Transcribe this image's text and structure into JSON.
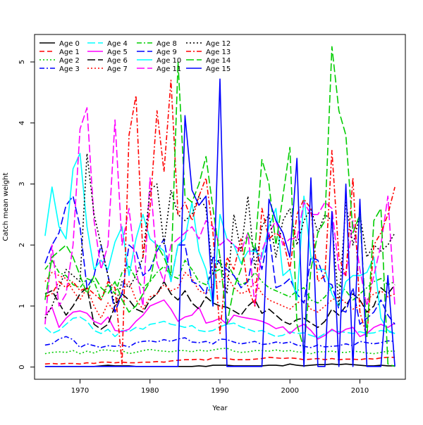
{
  "chart_data": {
    "type": "line",
    "xlabel": "Year",
    "ylabel": "Catch mean weight",
    "xlim": [
      1963.5,
      2016.5
    ],
    "ylim": [
      -0.2,
      5.45
    ],
    "x_ticks": [
      1970,
      1980,
      1990,
      2000,
      2010
    ],
    "y_ticks": [
      0,
      1,
      2,
      3,
      4,
      5
    ],
    "legend_position": "top-left",
    "x": [
      1965,
      1966,
      1967,
      1968,
      1969,
      1970,
      1971,
      1972,
      1973,
      1974,
      1975,
      1976,
      1977,
      1978,
      1979,
      1980,
      1981,
      1982,
      1983,
      1984,
      1985,
      1986,
      1987,
      1988,
      1989,
      1990,
      1991,
      1992,
      1993,
      1994,
      1995,
      1996,
      1997,
      1998,
      1999,
      2000,
      2001,
      2002,
      2003,
      2004,
      2005,
      2006,
      2007,
      2008,
      2009,
      2010,
      2011,
      2012,
      2013,
      2014,
      2015
    ],
    "series": [
      {
        "name": "Age 0",
        "color": "#000000",
        "dash": "solid",
        "values": [
          0.01,
          0.01,
          0.01,
          0.01,
          0.01,
          0.01,
          0.01,
          0.01,
          0.02,
          0.03,
          0.02,
          0.02,
          0.02,
          0.01,
          0.01,
          0.01,
          0.01,
          0.01,
          0.01,
          0.01,
          0.01,
          0.01,
          0.02,
          0.01,
          0.03,
          0.03,
          0.03,
          0.02,
          0.02,
          0.02,
          0.02,
          0.02,
          0.03,
          0.03,
          0.02,
          0.05,
          0.03,
          0.02,
          0.03,
          0.04,
          0.04,
          0.05,
          0.04,
          0.05,
          0.04,
          0.03,
          0.02,
          0.02,
          0.03,
          0.02,
          0.02
        ]
      },
      {
        "name": "Age 1",
        "color": "#ff0000",
        "dash": "dashed",
        "values": [
          0.05,
          0.06,
          0.05,
          0.06,
          0.06,
          0.05,
          0.07,
          0.06,
          0.08,
          0.08,
          0.07,
          0.08,
          0.07,
          0.07,
          0.08,
          0.08,
          0.09,
          0.08,
          0.1,
          0.11,
          0.12,
          0.12,
          0.13,
          0.11,
          0.15,
          0.15,
          0.14,
          0.12,
          0.12,
          0.12,
          0.13,
          0.14,
          0.16,
          0.15,
          0.14,
          0.15,
          0.14,
          0.12,
          0.13,
          0.14,
          0.12,
          0.14,
          0.12,
          0.13,
          0.13,
          0.12,
          0.14,
          0.13,
          0.15,
          0.16,
          0.16
        ]
      },
      {
        "name": "Age 2",
        "color": "#00cd00",
        "dash": "dotted",
        "values": [
          0.22,
          0.24,
          0.25,
          0.24,
          0.27,
          0.22,
          0.26,
          0.23,
          0.28,
          0.28,
          0.26,
          0.27,
          0.22,
          0.24,
          0.27,
          0.29,
          0.27,
          0.26,
          0.25,
          0.27,
          0.27,
          0.25,
          0.28,
          0.26,
          0.28,
          0.3,
          0.31,
          0.26,
          0.24,
          0.25,
          0.27,
          0.27,
          0.26,
          0.28,
          0.26,
          0.27,
          0.25,
          0.24,
          0.22,
          0.25,
          0.25,
          0.26,
          0.24,
          0.24,
          0.26,
          0.25,
          0.23,
          0.22,
          0.24,
          0.26,
          0.26
        ]
      },
      {
        "name": "Age 3",
        "color": "#0000ff",
        "dash": "dashdot",
        "values": [
          0.36,
          0.38,
          0.46,
          0.5,
          0.45,
          0.32,
          0.38,
          0.35,
          0.32,
          0.35,
          0.34,
          0.36,
          0.33,
          0.4,
          0.42,
          0.43,
          0.41,
          0.45,
          0.42,
          0.46,
          0.48,
          0.41,
          0.4,
          0.42,
          0.38,
          0.46,
          0.45,
          0.41,
          0.38,
          0.4,
          0.42,
          0.37,
          0.38,
          0.41,
          0.39,
          0.41,
          0.36,
          0.34,
          0.32,
          0.36,
          0.33,
          0.34,
          0.35,
          0.38,
          0.35,
          0.42,
          0.4,
          0.38,
          0.4,
          0.43,
          0.42
        ]
      },
      {
        "name": "Age 4",
        "color": "#00ffff",
        "dash": "longdash",
        "values": [
          0.65,
          0.55,
          0.6,
          0.7,
          0.8,
          0.82,
          0.75,
          0.6,
          0.55,
          0.62,
          0.5,
          0.6,
          0.58,
          0.65,
          0.62,
          0.7,
          0.72,
          0.75,
          0.7,
          0.68,
          0.65,
          0.68,
          0.6,
          0.58,
          0.6,
          0.66,
          0.7,
          0.72,
          0.66,
          0.62,
          0.58,
          0.6,
          0.55,
          0.5,
          0.52,
          0.58,
          0.55,
          0.56,
          0.52,
          0.48,
          0.55,
          0.6,
          0.58,
          0.57,
          0.55,
          0.58,
          0.55,
          0.56,
          0.6,
          0.58,
          0.55
        ]
      },
      {
        "name": "Age 5",
        "color": "#ff00ff",
        "dash": "solid",
        "values": [
          0.85,
          0.98,
          0.65,
          0.8,
          0.9,
          0.92,
          0.88,
          0.75,
          0.7,
          0.82,
          0.6,
          0.58,
          0.62,
          0.75,
          0.85,
          1.0,
          1.05,
          1.1,
          0.95,
          0.75,
          0.82,
          0.85,
          0.98,
          0.72,
          0.75,
          0.8,
          0.7,
          0.85,
          0.82,
          0.8,
          0.78,
          0.75,
          0.7,
          0.63,
          0.66,
          0.55,
          0.65,
          0.7,
          0.6,
          0.46,
          0.52,
          0.62,
          0.55,
          0.62,
          0.65,
          0.5,
          0.55,
          0.65,
          0.7,
          0.65,
          0.72
        ]
      },
      {
        "name": "Age 6",
        "color": "#000000",
        "dash": "longdash",
        "values": [
          1.2,
          1.25,
          1.05,
          0.85,
          1.0,
          1.2,
          1.3,
          0.7,
          0.62,
          0.7,
          1.0,
          1.2,
          1.1,
          0.95,
          0.9,
          1.1,
          1.2,
          1.4,
          1.2,
          1.1,
          1.25,
          1.05,
          0.95,
          1.15,
          1.05,
          1.0,
          0.98,
          0.92,
          0.85,
          1.0,
          1.1,
          0.88,
          0.95,
          0.85,
          0.75,
          0.7,
          0.78,
          0.8,
          0.72,
          0.65,
          0.75,
          0.95,
          0.85,
          1.0,
          1.2,
          1.1,
          0.9,
          1.0,
          1.3,
          1.2,
          1.35
        ]
      },
      {
        "name": "Age 7",
        "color": "#ff0000",
        "dash": "dotted",
        "values": [
          1.4,
          1.55,
          1.5,
          1.45,
          1.25,
          1.1,
          1.3,
          1.0,
          0.8,
          1.05,
          0.9,
          1.25,
          1.4,
          1.1,
          0.95,
          1.15,
          1.2,
          1.35,
          1.25,
          1.3,
          1.55,
          1.45,
          1.25,
          1.2,
          1.35,
          1.4,
          1.5,
          1.3,
          1.2,
          1.25,
          1.4,
          1.2,
          1.1,
          1.05,
          1.0,
          0.95,
          1.05,
          1.1,
          0.95,
          0.9,
          1.0,
          1.1,
          1.15,
          1.05,
          0.95,
          1.0,
          1.1,
          1.2,
          1.25,
          1.15,
          1.2
        ]
      },
      {
        "name": "Age 8",
        "color": "#00cd00",
        "dash": "dashdot",
        "values": [
          1.6,
          1.75,
          1.55,
          1.5,
          1.35,
          1.3,
          1.45,
          1.4,
          1.1,
          1.35,
          1.2,
          1.55,
          1.65,
          1.45,
          1.3,
          1.4,
          1.55,
          1.65,
          1.5,
          1.45,
          1.75,
          1.6,
          1.4,
          1.35,
          1.55,
          1.6,
          1.7,
          1.5,
          1.35,
          1.4,
          1.55,
          1.4,
          1.3,
          1.25,
          1.2,
          1.15,
          1.25,
          1.3,
          1.1,
          1.05,
          1.15,
          1.3,
          1.35,
          1.25,
          1.1,
          1.2,
          1.3,
          1.4,
          1.45,
          1.35,
          1.4
        ]
      },
      {
        "name": "Age 9",
        "color": "#0000ff",
        "dash": "longdash",
        "values": [
          1.7,
          2.0,
          2.2,
          2.65,
          2.8,
          2.3,
          1.3,
          1.5,
          2.0,
          1.5,
          0.9,
          1.2,
          2.0,
          1.9,
          1.5,
          1.6,
          1.9,
          2.1,
          1.4,
          2.0,
          2.0,
          1.4,
          1.35,
          1.2,
          1.8,
          1.7,
          1.6,
          1.5,
          1.3,
          1.4,
          2.0,
          1.6,
          2.2,
          1.3,
          1.35,
          1.45,
          1.2,
          1.05,
          1.8,
          1.75,
          1.4,
          1.35,
          0.95,
          0.9,
          1.3,
          0.7,
          0.8,
          0.9,
          1.1,
          0.85,
          0.7
        ]
      },
      {
        "name": "Age 10",
        "color": "#00ffff",
        "dash": "solid",
        "values": [
          2.15,
          2.95,
          2.3,
          2.1,
          3.25,
          3.5,
          2.3,
          1.6,
          1.75,
          1.6,
          2.05,
          2.3,
          1.5,
          2.1,
          2.5,
          2.1,
          2.0,
          1.9,
          1.4,
          2.0,
          2.1,
          2.7,
          1.9,
          1.6,
          1.0,
          2.5,
          2.1,
          2.0,
          1.7,
          1.9,
          1.9,
          1.8,
          2.3,
          2.6,
          1.5,
          1.6,
          1.1,
          2.8,
          1.8,
          1.6,
          1.6,
          1.2,
          1.0,
          1.4,
          1.5,
          1.5,
          1.55,
          1.8,
          0.8,
          0.6,
          0.55
        ]
      },
      {
        "name": "Age 11",
        "color": "#ff00ff",
        "dash": "longdash",
        "values": [
          0.7,
          2.0,
          1.0,
          1.2,
          2.0,
          3.9,
          4.25,
          2.4,
          1.6,
          2.0,
          4.05,
          2.0,
          2.6,
          1.6,
          1.0,
          3.1,
          1.7,
          1.4,
          2.0,
          2.1,
          2.2,
          2.3,
          2.1,
          2.4,
          2.3,
          2.0,
          2.1,
          2.0,
          1.9,
          2.2,
          1.0,
          1.9,
          2.2,
          2.4,
          2.0,
          2.1,
          2.1,
          2.7,
          2.5,
          2.5,
          2.7,
          2.6,
          1.6,
          1.5,
          2.4,
          1.6,
          1.0,
          1.5,
          2.0,
          2.8,
          1.0
        ]
      },
      {
        "name": "Age 12",
        "color": "#000000",
        "dash": "dotted",
        "values": [
          0.8,
          1.0,
          1.3,
          1.6,
          1.5,
          1.4,
          3.5,
          2.5,
          2.0,
          1.5,
          1.0,
          1.4,
          1.3,
          1.5,
          1.8,
          2.9,
          3.0,
          2.0,
          2.9,
          2.5,
          2.4,
          2.5,
          2.8,
          2.6,
          1.5,
          1.8,
          1.2,
          2.5,
          1.9,
          2.8,
          1.6,
          2.3,
          2.5,
          1.8,
          2.4,
          2.6,
          2.0,
          2.4,
          2.6,
          2.2,
          2.5,
          2.4,
          1.0,
          2.7,
          2.0,
          2.5,
          1.8,
          2.0,
          1.9,
          2.0,
          2.2
        ]
      },
      {
        "name": "Age 13",
        "color": "#ff0000",
        "dash": "dashdot",
        "values": [
          1.15,
          1.2,
          1.4,
          1.3,
          1.4,
          1.25,
          1.3,
          1.2,
          1.1,
          1.4,
          1.3,
          0.05,
          3.8,
          4.45,
          1.8,
          2.6,
          4.2,
          3.2,
          4.7,
          2.5,
          2.7,
          2.4,
          2.8,
          3.1,
          2.2,
          0.55,
          1.8,
          1.6,
          2.1,
          1.3,
          1.0,
          2.6,
          2.1,
          2.2,
          2.1,
          1.6,
          2.5,
          2.75,
          2.6,
          1.4,
          1.5,
          3.55,
          1.8,
          1.5,
          3.1,
          0.9,
          0.5,
          2.0,
          2.2,
          2.5,
          2.95
        ]
      },
      {
        "name": "Age 14",
        "color": "#00cd00",
        "dash": "longdash",
        "values": [
          1.1,
          1.8,
          1.9,
          2.0,
          1.8,
          1.5,
          1.2,
          1.5,
          1.3,
          1.2,
          1.4,
          1.1,
          0.9,
          1.0,
          1.2,
          1.4,
          2.0,
          1.8,
          1.5,
          5.0,
          2.8,
          2.7,
          3.0,
          3.45,
          2.6,
          1.8,
          0.7,
          1.3,
          1.6,
          2.2,
          1.9,
          3.4,
          3.0,
          2.0,
          2.8,
          3.6,
          0.7,
          0.3,
          1.6,
          2.2,
          2.4,
          5.25,
          4.2,
          3.8,
          2.2,
          2.5,
          0.5,
          2.4,
          2.6,
          0.05,
          0.01
        ]
      },
      {
        "name": "Age 15",
        "color": "#0000ff",
        "dash": "solid",
        "values": [
          0.01,
          0.01,
          0.01,
          0.01,
          0.01,
          0.01,
          0.01,
          0.01,
          0.01,
          0.01,
          0.01,
          0.01,
          0.01,
          0.01,
          0.01,
          0.01,
          0.01,
          0.01,
          0.01,
          0.01,
          4.12,
          2.9,
          2.65,
          2.8,
          1.0,
          4.72,
          0.01,
          0.01,
          0.01,
          0.01,
          0.01,
          0.01,
          2.75,
          2.4,
          2.2,
          1.8,
          3.42,
          0.01,
          3.1,
          0.01,
          0.01,
          2.55,
          0.01,
          3.0,
          0.01,
          2.75,
          0.01,
          0.01,
          0.01,
          1.5,
          0.01
        ]
      }
    ]
  }
}
